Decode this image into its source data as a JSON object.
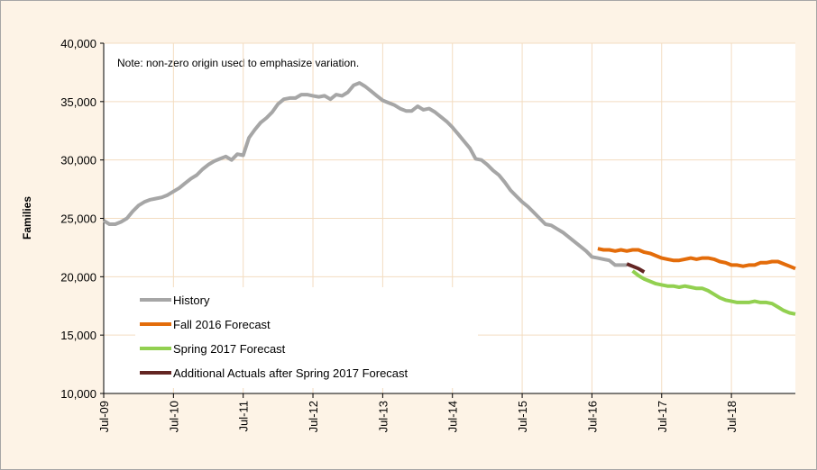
{
  "chart_data": {
    "type": "line",
    "note": "Note: non-zero origin used to emphasize variation.",
    "ylabel": "Families",
    "categories": [
      "Jul-09",
      null,
      null,
      null,
      null,
      null,
      null,
      null,
      null,
      null,
      null,
      null,
      "Jul-10",
      null,
      null,
      null,
      null,
      null,
      null,
      null,
      null,
      null,
      null,
      null,
      "Jul-11",
      null,
      null,
      null,
      null,
      null,
      null,
      null,
      null,
      null,
      null,
      null,
      "Jul-12",
      null,
      null,
      null,
      null,
      null,
      null,
      null,
      null,
      null,
      null,
      null,
      "Jul-13",
      null,
      null,
      null,
      null,
      null,
      null,
      null,
      null,
      null,
      null,
      null,
      "Jul-14",
      null,
      null,
      null,
      null,
      null,
      null,
      null,
      null,
      null,
      null,
      null,
      "Jul-15",
      null,
      null,
      null,
      null,
      null,
      null,
      null,
      null,
      null,
      null,
      null,
      "Jul-16",
      null,
      null,
      null,
      null,
      null,
      null,
      null,
      null,
      null,
      null,
      null,
      "Jul-17",
      null,
      null,
      null,
      null,
      null,
      null,
      null,
      null,
      null,
      null,
      null,
      "Jul-18",
      null,
      null,
      null,
      null,
      null,
      null,
      null,
      null,
      null,
      null,
      null
    ],
    "series": [
      {
        "name": "History",
        "color": "#a6a6a6",
        "values": [
          24800,
          24500,
          24500,
          24700,
          25000,
          25600,
          26100,
          26400,
          26600,
          26700,
          26800,
          27000,
          27300,
          27600,
          28000,
          28400,
          28700,
          29200,
          29600,
          29900,
          30100,
          30300,
          30000,
          30500,
          30400,
          31900,
          32600,
          33200,
          33600,
          34100,
          34800,
          35200,
          35300,
          35300,
          35600,
          35600,
          35500,
          35400,
          35500,
          35200,
          35600,
          35500,
          35800,
          36400,
          36600,
          36300,
          35900,
          35500,
          35100,
          34900,
          34700,
          34400,
          34200,
          34200,
          34600,
          34300,
          34400,
          34100,
          33700,
          33300,
          32800,
          32200,
          31600,
          31000,
          30100,
          30000,
          29600,
          29100,
          28700,
          28100,
          27400,
          26900,
          26400,
          26000,
          25500,
          25000,
          24500,
          24400,
          24100,
          23800,
          23400,
          23000,
          22600,
          22200,
          21700,
          21600,
          21500,
          21400,
          21000,
          21000,
          21000,
          null,
          null,
          null,
          null,
          null,
          null,
          null,
          null,
          null,
          null,
          null,
          null,
          null,
          null,
          null,
          null,
          null,
          null,
          null,
          null,
          null,
          null,
          null,
          null,
          null,
          null,
          null,
          null,
          null
        ]
      },
      {
        "name": "Fall 2016 Forecast",
        "color": "#e36c0a",
        "values": [
          null,
          null,
          null,
          null,
          null,
          null,
          null,
          null,
          null,
          null,
          null,
          null,
          null,
          null,
          null,
          null,
          null,
          null,
          null,
          null,
          null,
          null,
          null,
          null,
          null,
          null,
          null,
          null,
          null,
          null,
          null,
          null,
          null,
          null,
          null,
          null,
          null,
          null,
          null,
          null,
          null,
          null,
          null,
          null,
          null,
          null,
          null,
          null,
          null,
          null,
          null,
          null,
          null,
          null,
          null,
          null,
          null,
          null,
          null,
          null,
          null,
          null,
          null,
          null,
          null,
          null,
          null,
          null,
          null,
          null,
          null,
          null,
          null,
          null,
          null,
          null,
          null,
          null,
          null,
          null,
          null,
          null,
          null,
          null,
          null,
          22400,
          22300,
          22300,
          22200,
          22300,
          22200,
          22300,
          22300,
          22100,
          22000,
          21800,
          21600,
          21500,
          21400,
          21400,
          21500,
          21600,
          21500,
          21600,
          21600,
          21500,
          21300,
          21200,
          21000,
          21000,
          20900,
          21000,
          21000,
          21200,
          21200,
          21300,
          21300,
          21100,
          20900,
          20700
        ]
      },
      {
        "name": "Spring 2017 Forecast",
        "color": "#92d050",
        "values": [
          null,
          null,
          null,
          null,
          null,
          null,
          null,
          null,
          null,
          null,
          null,
          null,
          null,
          null,
          null,
          null,
          null,
          null,
          null,
          null,
          null,
          null,
          null,
          null,
          null,
          null,
          null,
          null,
          null,
          null,
          null,
          null,
          null,
          null,
          null,
          null,
          null,
          null,
          null,
          null,
          null,
          null,
          null,
          null,
          null,
          null,
          null,
          null,
          null,
          null,
          null,
          null,
          null,
          null,
          null,
          null,
          null,
          null,
          null,
          null,
          null,
          null,
          null,
          null,
          null,
          null,
          null,
          null,
          null,
          null,
          null,
          null,
          null,
          null,
          null,
          null,
          null,
          null,
          null,
          null,
          null,
          null,
          null,
          null,
          null,
          null,
          null,
          null,
          null,
          null,
          null,
          20500,
          20100,
          19800,
          19600,
          19400,
          19300,
          19200,
          19200,
          19100,
          19200,
          19100,
          19000,
          19000,
          18800,
          18500,
          18200,
          18000,
          17900,
          17800,
          17800,
          17800,
          17900,
          17800,
          17800,
          17700,
          17400,
          17100,
          16900,
          16800
        ]
      },
      {
        "name": "Additional Actuals after Spring 2017 Forecast",
        "color": "#632523",
        "values": [
          null,
          null,
          null,
          null,
          null,
          null,
          null,
          null,
          null,
          null,
          null,
          null,
          null,
          null,
          null,
          null,
          null,
          null,
          null,
          null,
          null,
          null,
          null,
          null,
          null,
          null,
          null,
          null,
          null,
          null,
          null,
          null,
          null,
          null,
          null,
          null,
          null,
          null,
          null,
          null,
          null,
          null,
          null,
          null,
          null,
          null,
          null,
          null,
          null,
          null,
          null,
          null,
          null,
          null,
          null,
          null,
          null,
          null,
          null,
          null,
          null,
          null,
          null,
          null,
          null,
          null,
          null,
          null,
          null,
          null,
          null,
          null,
          null,
          null,
          null,
          null,
          null,
          null,
          null,
          null,
          null,
          null,
          null,
          null,
          null,
          null,
          null,
          null,
          null,
          null,
          21100,
          20900,
          20700,
          20400,
          null,
          null,
          null,
          null,
          null,
          null,
          null,
          null,
          null,
          null,
          null,
          null,
          null,
          null,
          null,
          null,
          null,
          null,
          null,
          null,
          null,
          null,
          null,
          null,
          null,
          null
        ]
      }
    ],
    "ylim": [
      10000,
      40000
    ],
    "yticks": [
      {
        "value": 10000,
        "label": "10,000"
      },
      {
        "value": 15000,
        "label": "15,000"
      },
      {
        "value": 20000,
        "label": "20,000"
      },
      {
        "value": 25000,
        "label": "25,000"
      },
      {
        "value": 30000,
        "label": "30,000"
      },
      {
        "value": 35000,
        "label": "35,000"
      },
      {
        "value": 40000,
        "label": "40,000"
      }
    ],
    "grid": true,
    "legend": "lower left"
  }
}
